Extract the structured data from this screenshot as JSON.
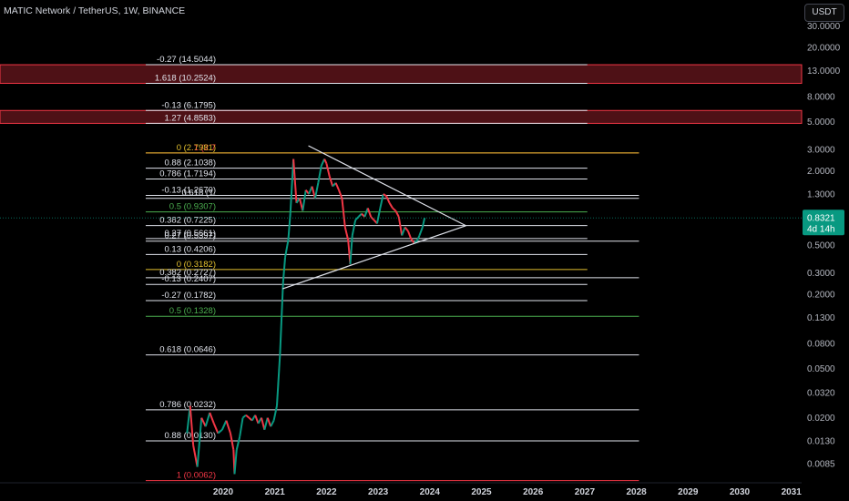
{
  "header": {
    "title": "MATIC Network / TetherUS, 1W, BINANCE",
    "currency": "USDT"
  },
  "price_badge": {
    "price": "0.8321",
    "countdown": "4d 14h",
    "color": "#089981"
  },
  "colors": {
    "up": "#089981",
    "down": "#f23645",
    "line": "#e0e3eb",
    "fib_red": "#f23645",
    "fib_yellow": "#e4c12f",
    "fib_green": "#4caf50"
  },
  "chart_data": {
    "type": "line",
    "symbol": "MATICUSDT",
    "timeframe": "1W",
    "x_axis": {
      "tick_labels": [
        "2020",
        "2021",
        "2022",
        "2023",
        "2024",
        "2025",
        "2026",
        "2027",
        "2028",
        "2029",
        "2030",
        "2031"
      ],
      "range": [
        2019.5,
        2031.3
      ]
    },
    "y_axis": {
      "scale": "log",
      "range": [
        0.0055,
        40
      ],
      "tick_labels": [
        "30.0000",
        "20.0000",
        "13.0000",
        "8.0000",
        "5.0000",
        "3.0000",
        "2.0000",
        "1.3000",
        "0.8321",
        "0.5000",
        "0.3000",
        "0.2000",
        "0.1300",
        "0.0800",
        "0.0500",
        "0.0320",
        "0.0200",
        "0.0130",
        "0.0085"
      ],
      "tick_values": [
        30,
        20,
        13,
        8,
        5,
        3,
        2,
        1.3,
        0.8321,
        0.5,
        0.3,
        0.2,
        0.13,
        0.08,
        0.05,
        0.032,
        0.02,
        0.013,
        0.0085
      ]
    },
    "price_path": [
      [
        2019.3,
        0.015
      ],
      [
        2019.36,
        0.025
      ],
      [
        2019.42,
        0.012
      ],
      [
        2019.5,
        0.008
      ],
      [
        2019.58,
        0.02
      ],
      [
        2019.66,
        0.017
      ],
      [
        2019.74,
        0.022
      ],
      [
        2019.82,
        0.018
      ],
      [
        2019.9,
        0.015
      ],
      [
        2019.98,
        0.016
      ],
      [
        2020.06,
        0.019
      ],
      [
        2020.14,
        0.015
      ],
      [
        2020.2,
        0.011
      ],
      [
        2020.22,
        0.007
      ],
      [
        2020.26,
        0.011
      ],
      [
        2020.32,
        0.014
      ],
      [
        2020.38,
        0.02
      ],
      [
        2020.44,
        0.021
      ],
      [
        2020.5,
        0.02
      ],
      [
        2020.56,
        0.019
      ],
      [
        2020.62,
        0.021
      ],
      [
        2020.68,
        0.018
      ],
      [
        2020.74,
        0.02
      ],
      [
        2020.8,
        0.016
      ],
      [
        2020.86,
        0.02
      ],
      [
        2020.92,
        0.017
      ],
      [
        2020.98,
        0.019
      ],
      [
        2021.04,
        0.025
      ],
      [
        2021.1,
        0.065
      ],
      [
        2021.16,
        0.25
      ],
      [
        2021.2,
        0.4
      ],
      [
        2021.26,
        0.55
      ],
      [
        2021.3,
        0.9
      ],
      [
        2021.36,
        2.5
      ],
      [
        2021.42,
        1.1
      ],
      [
        2021.48,
        1.2
      ],
      [
        2021.54,
        0.95
      ],
      [
        2021.6,
        1.4
      ],
      [
        2021.66,
        1.3
      ],
      [
        2021.72,
        1.5
      ],
      [
        2021.78,
        1.2
      ],
      [
        2021.84,
        1.6
      ],
      [
        2021.9,
        2.2
      ],
      [
        2021.96,
        2.5
      ],
      [
        2022.0,
        2.3
      ],
      [
        2022.06,
        1.8
      ],
      [
        2022.12,
        1.5
      ],
      [
        2022.18,
        1.6
      ],
      [
        2022.24,
        1.4
      ],
      [
        2022.3,
        1.2
      ],
      [
        2022.36,
        0.7
      ],
      [
        2022.42,
        0.55
      ],
      [
        2022.46,
        0.35
      ],
      [
        2022.5,
        0.6
      ],
      [
        2022.56,
        0.8
      ],
      [
        2022.62,
        0.85
      ],
      [
        2022.68,
        0.9
      ],
      [
        2022.74,
        0.85
      ],
      [
        2022.8,
        1.0
      ],
      [
        2022.86,
        0.85
      ],
      [
        2022.92,
        0.8
      ],
      [
        2022.98,
        0.75
      ],
      [
        2023.04,
        1.0
      ],
      [
        2023.1,
        1.3
      ],
      [
        2023.16,
        1.25
      ],
      [
        2023.22,
        1.1
      ],
      [
        2023.28,
        1.0
      ],
      [
        2023.34,
        0.95
      ],
      [
        2023.4,
        0.85
      ],
      [
        2023.46,
        0.6
      ],
      [
        2023.52,
        0.7
      ],
      [
        2023.58,
        0.65
      ],
      [
        2023.64,
        0.56
      ],
      [
        2023.7,
        0.52
      ],
      [
        2023.76,
        0.55
      ],
      [
        2023.8,
        0.6
      ],
      [
        2023.86,
        0.7
      ],
      [
        2023.9,
        0.8321
      ]
    ],
    "triangle": {
      "upper": [
        [
          2021.65,
          3.2
        ],
        [
          2024.7,
          0.72
        ]
      ],
      "lower": [
        [
          2021.15,
          0.222
        ],
        [
          2024.7,
          0.72
        ]
      ]
    },
    "fib_levels": [
      {
        "label": "-0.27 (14.5044)",
        "price": 14.5044,
        "x0": 2018.5,
        "x1": 2027.05,
        "color": "#e0e3eb"
      },
      {
        "label": "1.618 (10.2524)",
        "price": 10.2524,
        "x0": 2018.5,
        "x1": 2027.05,
        "color": "#e0e3eb"
      },
      {
        "label": "-0.13 (6.1795)",
        "price": 6.1795,
        "x0": 2018.5,
        "x1": 2027.05,
        "color": "#e0e3eb"
      },
      {
        "label": "1.27 (4.8583)",
        "price": 4.8583,
        "x0": 2018.5,
        "x1": 2027.05,
        "color": "#e0e3eb"
      },
      {
        "label": "1 (2.7",
        "price": 2.7981,
        "x0": 2018.5,
        "x1": 2028.05,
        "color": "#f23645"
      },
      {
        "label": "0 (2.7981)",
        "price": 2.7981,
        "x0": 2018.5,
        "x1": 2028.05,
        "color": "#e4c12f"
      },
      {
        "label": "0.88 (2.1038)",
        "price": 2.1038,
        "x0": 2018.5,
        "x1": 2027.05,
        "color": "#e0e3eb"
      },
      {
        "label": "0.786 (1.7194)",
        "price": 1.7194,
        "x0": 2018.5,
        "x1": 2027.05,
        "color": "#e0e3eb"
      },
      {
        "label": "0.618 (1.",
        "price": 1.2,
        "x0": 2018.5,
        "x1": 2028.05,
        "color": "#e0e3eb"
      },
      {
        "label": "-0.13 (1.2670)",
        "price": 1.267,
        "x0": 2018.5,
        "x1": 2028.05,
        "color": "#e0e3eb"
      },
      {
        "label": "0.5 (0.9307)",
        "price": 0.9307,
        "x0": 2018.5,
        "x1": 2027.05,
        "color": "#4caf50"
      },
      {
        "label": "0.382 (0.7225)",
        "price": 0.7225,
        "x0": 2018.5,
        "x1": 2027.05,
        "color": "#e0e3eb"
      },
      {
        "label": "0.27 (0.5661)",
        "price": 0.5661,
        "x0": 2018.5,
        "x1": 2027.05,
        "color": "#e0e3eb"
      },
      {
        "label": "0.27 (0.5397)",
        "price": 0.5397,
        "x0": 2018.5,
        "x1": 2028.05,
        "color": "#e0e3eb"
      },
      {
        "label": "0.13 (0.4206)",
        "price": 0.4206,
        "x0": 2018.5,
        "x1": 2027.05,
        "color": "#e0e3eb"
      },
      {
        "label": "0 (0.3182)",
        "price": 0.3182,
        "x0": 2018.5,
        "x1": 2027.05,
        "color": "#e4c12f"
      },
      {
        "label": "0.382 (0.2727)",
        "price": 0.2727,
        "x0": 2018.5,
        "x1": 2028.05,
        "color": "#e0e3eb"
      },
      {
        "label": "-0.13 (0.2407)",
        "price": 0.2407,
        "x0": 2018.5,
        "x1": 2027.05,
        "color": "#e0e3eb"
      },
      {
        "label": "-0.27 (0.1782)",
        "price": 0.1782,
        "x0": 2018.5,
        "x1": 2027.05,
        "color": "#e0e3eb"
      },
      {
        "label": "0.5 (0.1328)",
        "price": 0.1328,
        "x0": 2018.5,
        "x1": 2028.05,
        "color": "#4caf50"
      },
      {
        "label": "0.618 (0.0646)",
        "price": 0.0646,
        "x0": 2018.5,
        "x1": 2028.05,
        "color": "#e0e3eb"
      },
      {
        "label": "0.786 (0.0232)",
        "price": 0.0232,
        "x0": 2018.5,
        "x1": 2028.05,
        "color": "#e0e3eb"
      },
      {
        "label": "0.88 (0.0130)",
        "price": 0.013,
        "x0": 2018.5,
        "x1": 2028.05,
        "color": "#e0e3eb"
      },
      {
        "label": "1 (0.0062)",
        "price": 0.0062,
        "x0": 2018.5,
        "x1": 2028.05,
        "color": "#f23645"
      }
    ],
    "fib_zones": [
      {
        "top": 14.5044,
        "bottom": 10.2524,
        "color": "#f23645"
      },
      {
        "top": 6.1795,
        "bottom": 4.8583,
        "color": "#f23645"
      }
    ]
  }
}
